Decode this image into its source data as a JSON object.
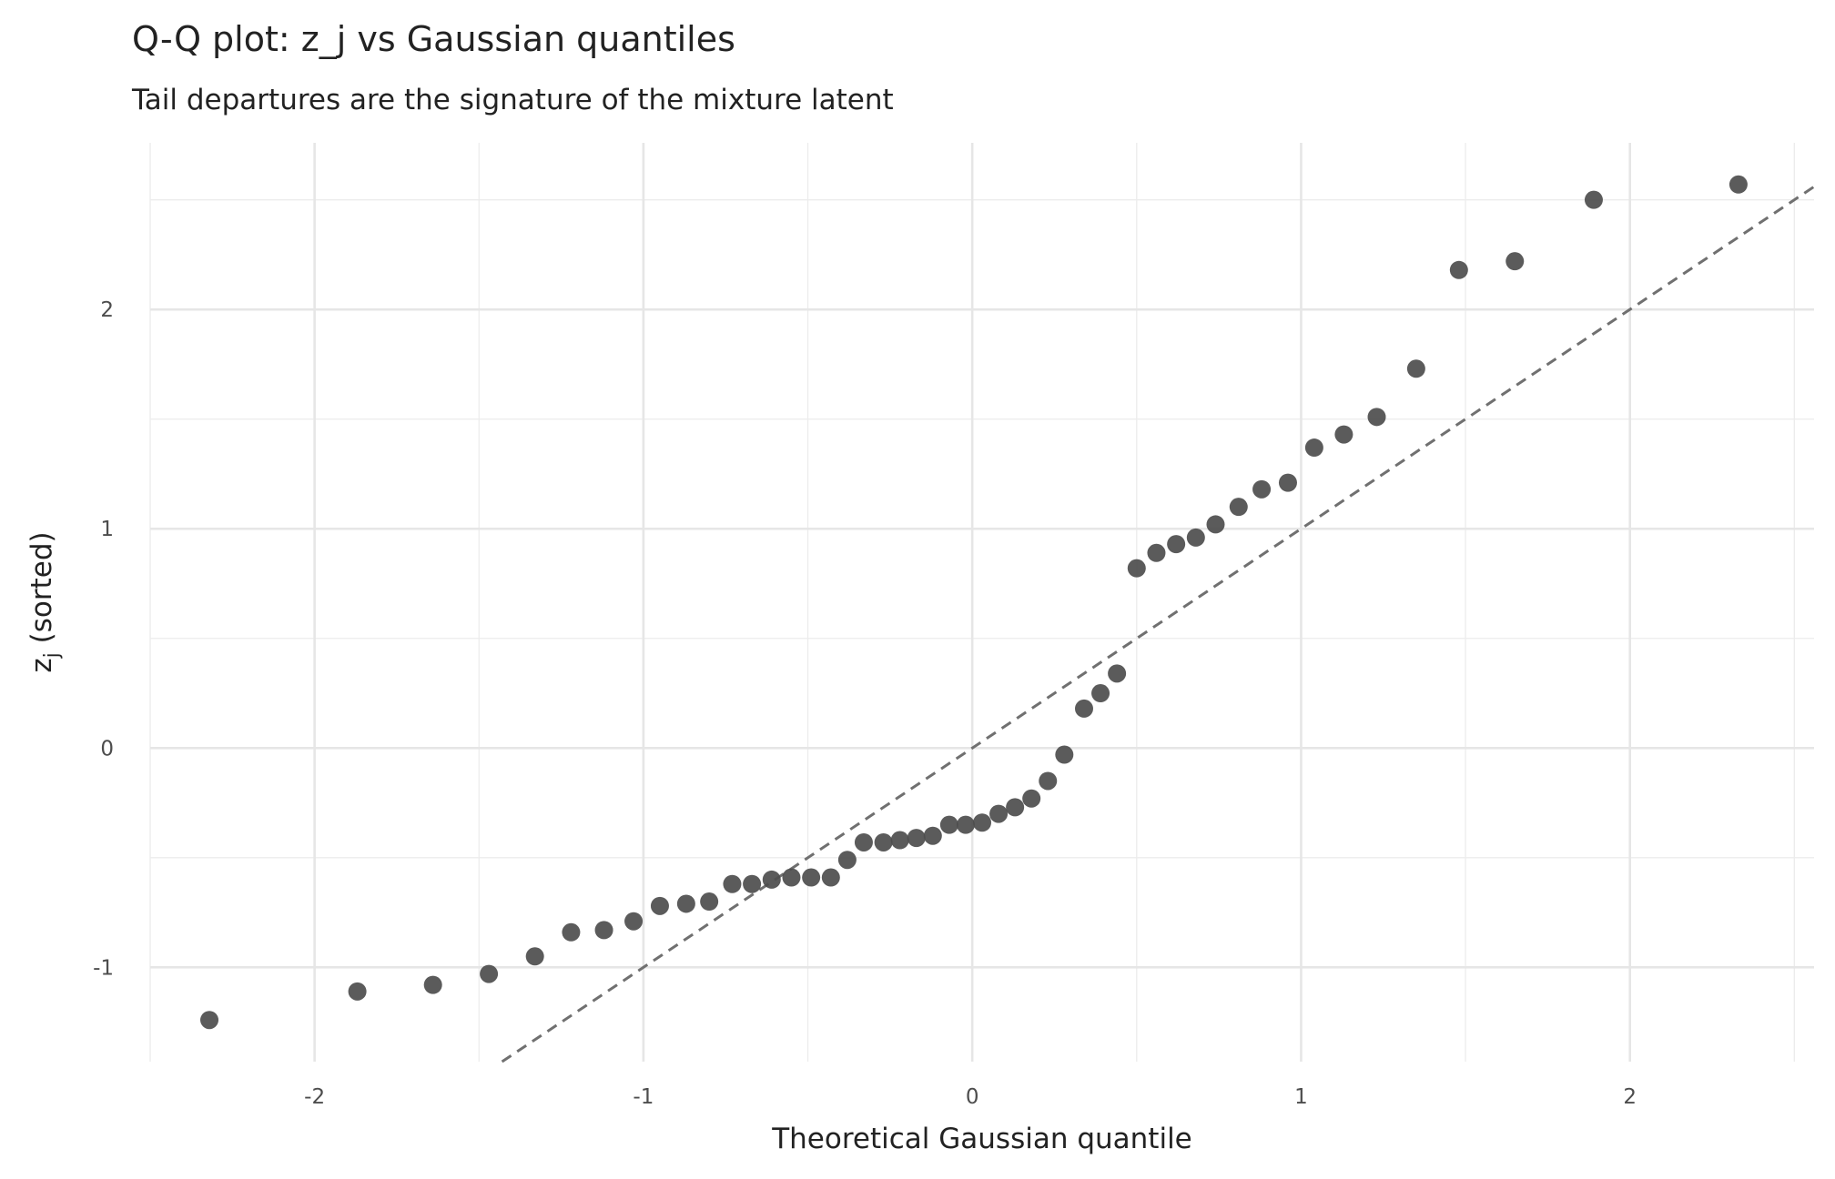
{
  "chart_data": {
    "type": "scatter",
    "title": "Q-Q plot: z_j vs Gaussian quantiles",
    "subtitle": "Tail departures are the signature of the mixture latent",
    "x_label": "Theoretical Gaussian quantile",
    "y_label": {
      "base": "z",
      "subscript": "j",
      "rest": " (sorted)"
    },
    "color": "#4d4d4d",
    "grid": true,
    "reference_line": "identity",
    "xlim": [
      -2.5,
      2.56
    ],
    "ylim": [
      -1.43,
      2.76
    ],
    "xticks": [
      -2,
      -1,
      0,
      1,
      2
    ],
    "yticks": [
      -1,
      0,
      1,
      2
    ],
    "x": [
      -2.32,
      -1.87,
      -1.64,
      -1.47,
      -1.33,
      -1.22,
      -1.12,
      -1.03,
      -0.95,
      -0.87,
      -0.8,
      -0.73,
      -0.67,
      -0.61,
      -0.55,
      -0.49,
      -0.43,
      -0.38,
      -0.33,
      -0.27,
      -0.22,
      -0.17,
      -0.12,
      -0.07,
      -0.02,
      0.03,
      0.08,
      0.13,
      0.18,
      0.23,
      0.28,
      0.34,
      0.39,
      0.44,
      0.5,
      0.56,
      0.62,
      0.68,
      0.74,
      0.81,
      0.88,
      0.96,
      1.04,
      1.13,
      1.23,
      1.35,
      1.48,
      1.65,
      1.89,
      2.33
    ],
    "values": [
      -1.24,
      -1.11,
      -1.08,
      -1.03,
      -0.95,
      -0.84,
      -0.83,
      -0.79,
      -0.72,
      -0.71,
      -0.7,
      -0.62,
      -0.62,
      -0.6,
      -0.59,
      -0.59,
      -0.59,
      -0.51,
      -0.43,
      -0.43,
      -0.42,
      -0.41,
      -0.4,
      -0.35,
      -0.35,
      -0.34,
      -0.3,
      -0.27,
      -0.23,
      -0.15,
      -0.03,
      0.18,
      0.25,
      0.34,
      0.82,
      0.89,
      0.93,
      0.96,
      1.02,
      1.1,
      1.18,
      1.21,
      1.37,
      1.43,
      1.51,
      1.73,
      2.18,
      2.22,
      2.5,
      2.57
    ]
  }
}
